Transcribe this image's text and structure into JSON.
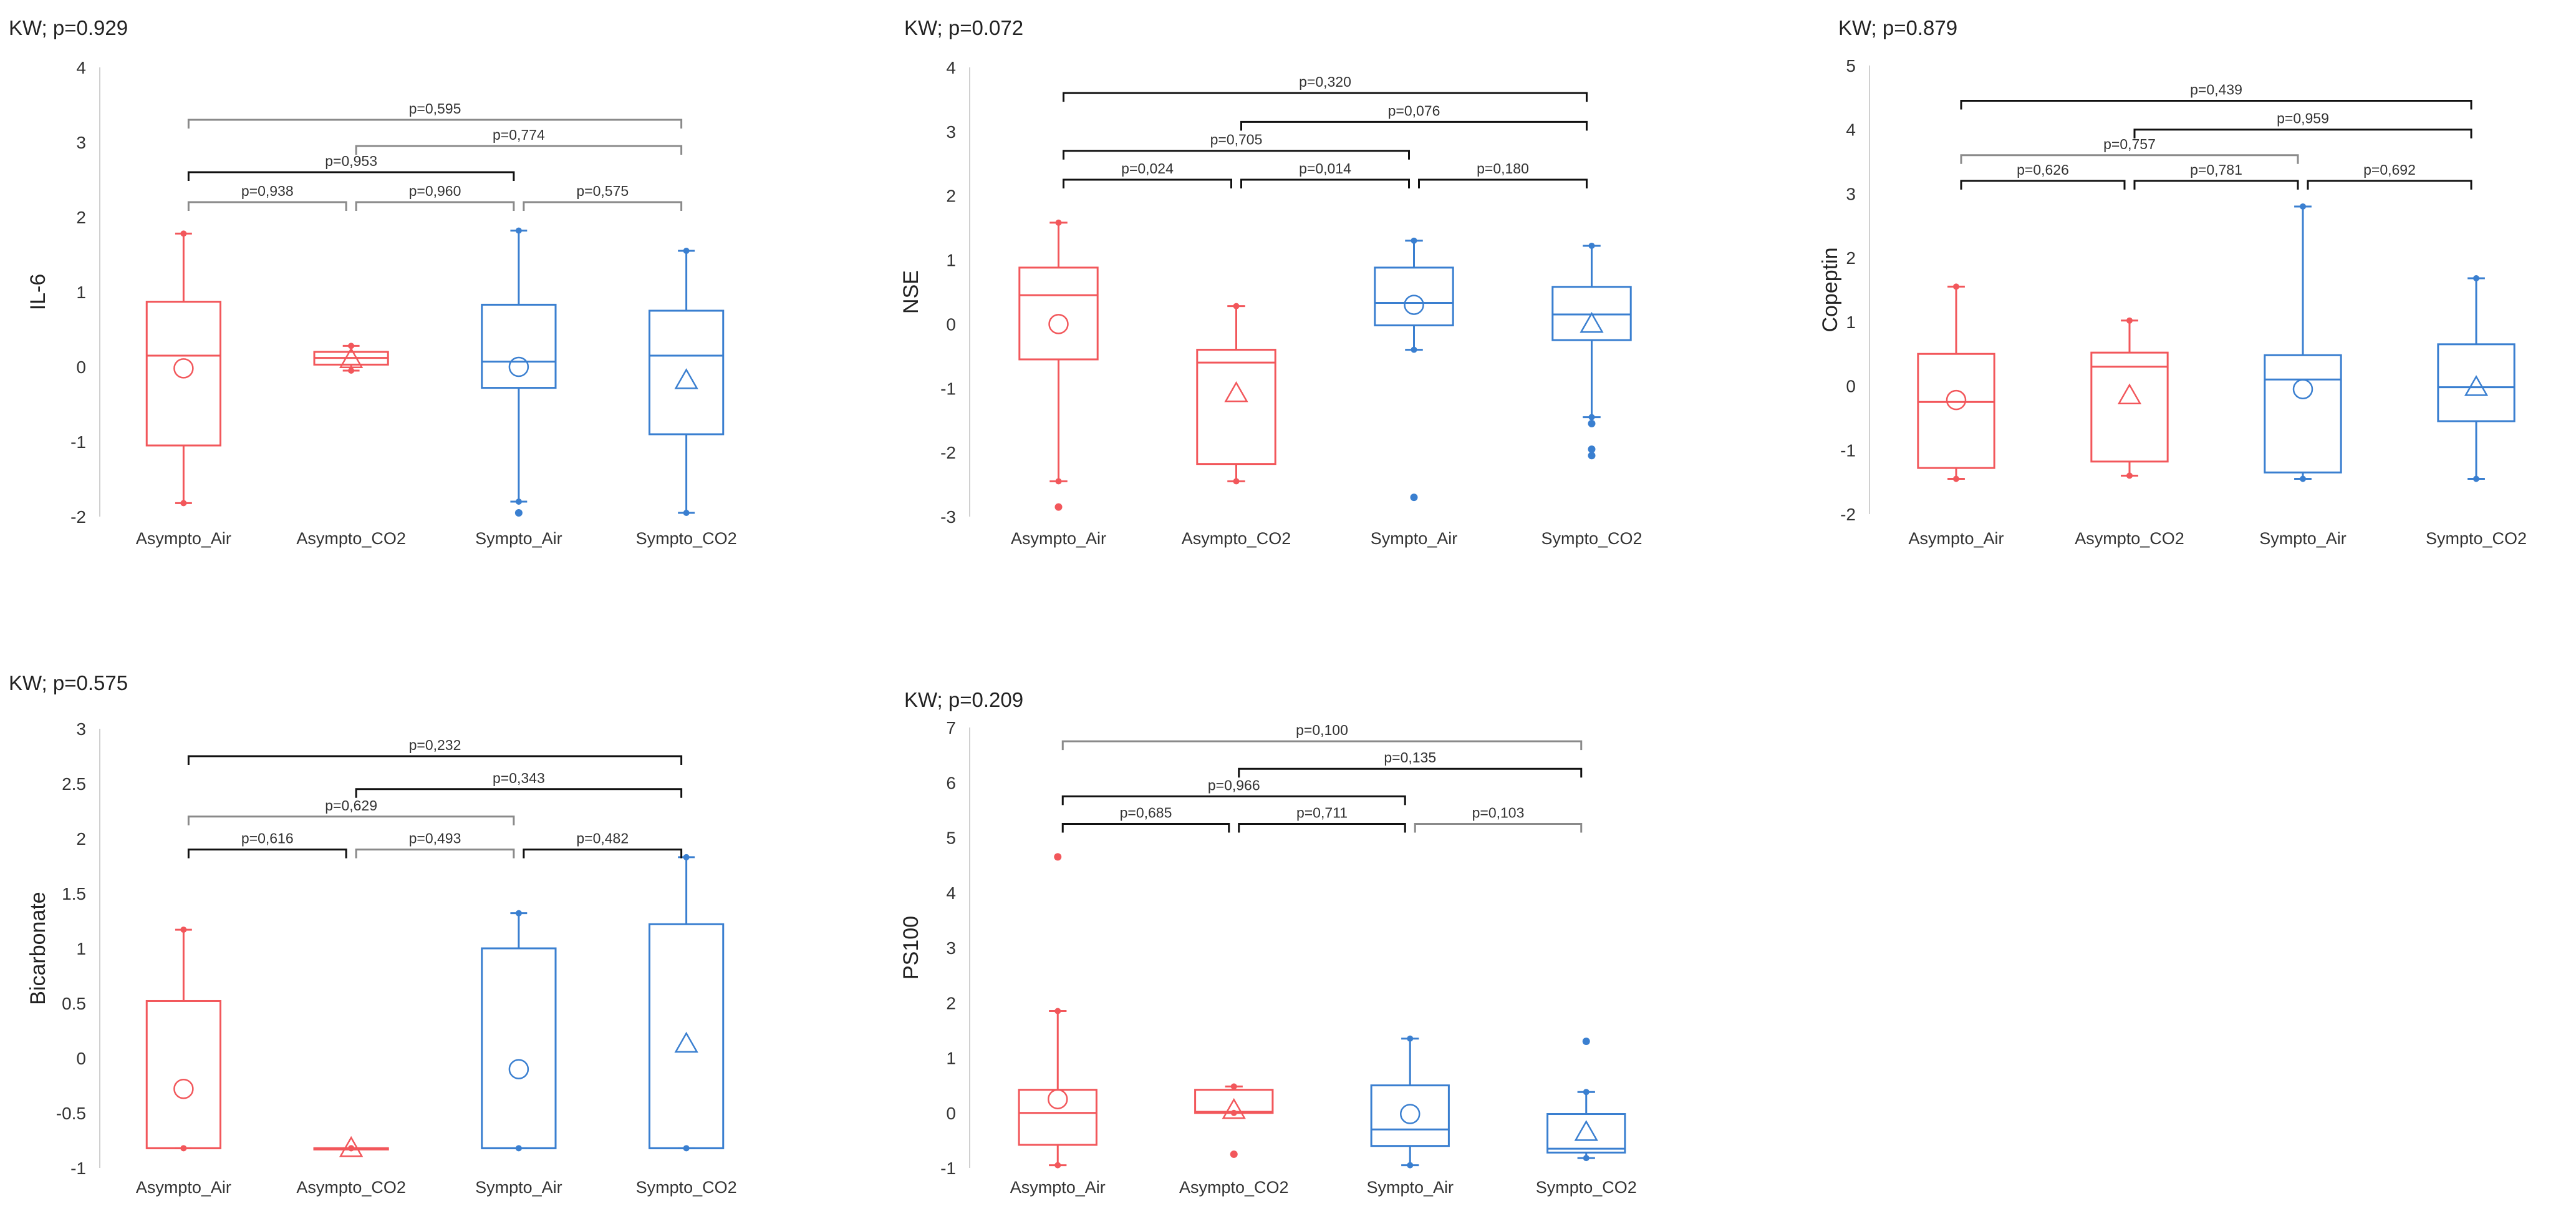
{
  "colors": {
    "asympto": "#f2575b",
    "sympto": "#3a7fd0",
    "bracket_dark": "#111111",
    "bracket_light": "#8a8a8a"
  },
  "chart_data": [
    {
      "type": "box",
      "title": "KW; p=0.929",
      "ylabel": "IL-6",
      "ylim": [
        -2,
        4
      ],
      "yticks": [
        "-2",
        "-1",
        "0",
        "1",
        "2",
        "3",
        "4"
      ],
      "categories": [
        "Asympto_Air",
        "Asympto_CO2",
        "Sympto_Air",
        "Sympto_CO2"
      ],
      "boxes": [
        {
          "q1": -1.05,
          "median": 0.15,
          "q3": 0.87,
          "wlo": -1.82,
          "whi": 1.78,
          "mean": -0.02,
          "mean_marker": "circle",
          "outliers": []
        },
        {
          "q1": 0.03,
          "median": 0.12,
          "q3": 0.2,
          "wlo": -0.05,
          "whi": 0.28,
          "mean": 0.1,
          "mean_marker": "triangle",
          "outliers": []
        },
        {
          "q1": -0.28,
          "median": 0.07,
          "q3": 0.83,
          "wlo": -1.8,
          "whi": 1.82,
          "mean": 0.0,
          "mean_marker": "circle",
          "outliers": [
            -1.95
          ]
        },
        {
          "q1": -0.9,
          "median": 0.15,
          "q3": 0.75,
          "wlo": -1.95,
          "whi": 1.55,
          "mean": -0.18,
          "mean_marker": "triangle",
          "outliers": []
        }
      ],
      "brackets": [
        {
          "label": "p=0,595",
          "from": 0,
          "to": 3,
          "level": 3.3,
          "style": "light"
        },
        {
          "label": "p=0,774",
          "from": 1,
          "to": 3,
          "level": 2.95,
          "style": "light"
        },
        {
          "label": "p=0,953",
          "from": 0,
          "to": 2,
          "level": 2.6,
          "style": "dark"
        },
        {
          "label": "p=0,938",
          "from": 0,
          "to": 1,
          "level": 2.2,
          "style": "light"
        },
        {
          "label": "p=0,960",
          "from": 1,
          "to": 2,
          "level": 2.2,
          "style": "light"
        },
        {
          "label": "p=0,575",
          "from": 2,
          "to": 3,
          "level": 2.2,
          "style": "light"
        }
      ]
    },
    {
      "type": "box",
      "title": "KW; p=0.072",
      "ylabel": "NSE",
      "ylim": [
        -3,
        4
      ],
      "yticks": [
        "-3",
        "-2",
        "-1",
        "0",
        "1",
        "2",
        "3",
        "4"
      ],
      "categories": [
        "Asympto_Air",
        "Asympto_CO2",
        "Sympto_Air",
        "Sympto_CO2"
      ],
      "boxes": [
        {
          "q1": -0.55,
          "median": 0.45,
          "q3": 0.88,
          "wlo": -2.45,
          "whi": 1.58,
          "mean": 0.0,
          "mean_marker": "circle",
          "outliers": [
            -2.85
          ]
        },
        {
          "q1": -2.18,
          "median": -0.6,
          "q3": -0.4,
          "wlo": -2.45,
          "whi": 0.28,
          "mean": -1.08,
          "mean_marker": "triangle",
          "outliers": []
        },
        {
          "q1": -0.02,
          "median": 0.33,
          "q3": 0.88,
          "wlo": -0.4,
          "whi": 1.3,
          "mean": 0.3,
          "mean_marker": "circle",
          "outliers": [
            -2.7
          ]
        },
        {
          "q1": -0.25,
          "median": 0.15,
          "q3": 0.58,
          "wlo": -1.45,
          "whi": 1.22,
          "mean": 0.0,
          "mean_marker": "triangle",
          "outliers": [
            -1.55,
            -1.95,
            -2.05
          ]
        }
      ],
      "brackets": [
        {
          "label": "p=0,320",
          "from": 0,
          "to": 3,
          "level": 3.6,
          "style": "dark"
        },
        {
          "label": "p=0,076",
          "from": 1,
          "to": 3,
          "level": 3.15,
          "style": "dark"
        },
        {
          "label": "p=0,705",
          "from": 0,
          "to": 2,
          "level": 2.7,
          "style": "dark"
        },
        {
          "label": "p=0,024",
          "from": 0,
          "to": 1,
          "level": 2.25,
          "style": "dark"
        },
        {
          "label": "p=0,014",
          "from": 1,
          "to": 2,
          "level": 2.25,
          "style": "dark"
        },
        {
          "label": "p=0,180",
          "from": 2,
          "to": 3,
          "level": 2.25,
          "style": "dark"
        }
      ]
    },
    {
      "type": "box",
      "title": "KW; p=0.879",
      "ylabel": "Copeptin",
      "ylim": [
        -2,
        5
      ],
      "yticks": [
        "-2",
        "-1",
        "0",
        "1",
        "2",
        "3",
        "4",
        "5"
      ],
      "categories": [
        "Asympto_Air",
        "Asympto_CO2",
        "Sympto_Air",
        "Sympto_CO2"
      ],
      "boxes": [
        {
          "q1": -1.28,
          "median": -0.25,
          "q3": 0.5,
          "wlo": -1.45,
          "whi": 1.55,
          "mean": -0.22,
          "mean_marker": "circle",
          "outliers": []
        },
        {
          "q1": -1.18,
          "median": 0.3,
          "q3": 0.52,
          "wlo": -1.4,
          "whi": 1.02,
          "mean": -0.15,
          "mean_marker": "triangle",
          "outliers": []
        },
        {
          "q1": -1.35,
          "median": 0.1,
          "q3": 0.48,
          "wlo": -1.45,
          "whi": 2.8,
          "mean": -0.05,
          "mean_marker": "circle",
          "outliers": []
        },
        {
          "q1": -0.55,
          "median": -0.02,
          "q3": 0.65,
          "wlo": -1.45,
          "whi": 1.68,
          "mean": -0.02,
          "mean_marker": "triangle",
          "outliers": []
        }
      ],
      "brackets": [
        {
          "label": "p=0,439",
          "from": 0,
          "to": 3,
          "level": 4.45,
          "style": "dark"
        },
        {
          "label": "p=0,959",
          "from": 1,
          "to": 3,
          "level": 4.0,
          "style": "dark"
        },
        {
          "label": "p=0,757",
          "from": 0,
          "to": 2,
          "level": 3.6,
          "style": "light"
        },
        {
          "label": "p=0,626",
          "from": 0,
          "to": 1,
          "level": 3.2,
          "style": "dark"
        },
        {
          "label": "p=0,781",
          "from": 1,
          "to": 2,
          "level": 3.2,
          "style": "dark"
        },
        {
          "label": "p=0,692",
          "from": 2,
          "to": 3,
          "level": 3.2,
          "style": "dark"
        }
      ]
    },
    {
      "type": "box",
      "title": "KW; p=0.575",
      "ylabel": "Bicarbonate",
      "ylim": [
        -1,
        3
      ],
      "yticks": [
        "-1",
        "-0.5",
        "0",
        "0.5",
        "1",
        "1.5",
        "2",
        "2.5",
        "3"
      ],
      "categories": [
        "Asympto_Air",
        "Asympto_CO2",
        "Sympto_Air",
        "Sympto_CO2"
      ],
      "boxes": [
        {
          "q1": -0.82,
          "median": -0.82,
          "q3": 0.52,
          "wlo": -0.82,
          "whi": 1.17,
          "mean": -0.28,
          "mean_marker": "circle",
          "outliers": []
        },
        {
          "q1": -0.82,
          "median": -0.82,
          "q3": -0.82,
          "wlo": -0.82,
          "whi": -0.82,
          "mean": -0.82,
          "mean_marker": "triangle",
          "outliers": []
        },
        {
          "q1": -0.82,
          "median": -0.82,
          "q3": 1.0,
          "wlo": -0.82,
          "whi": 1.32,
          "mean": -0.1,
          "mean_marker": "circle",
          "outliers": []
        },
        {
          "q1": -0.82,
          "median": -0.82,
          "q3": 1.22,
          "wlo": -0.82,
          "whi": 1.83,
          "mean": 0.13,
          "mean_marker": "triangle",
          "outliers": []
        }
      ],
      "brackets": [
        {
          "label": "p=0,232",
          "from": 0,
          "to": 3,
          "level": 2.75,
          "style": "dark"
        },
        {
          "label": "p=0,343",
          "from": 1,
          "to": 3,
          "level": 2.45,
          "style": "dark"
        },
        {
          "label": "p=0,629",
          "from": 0,
          "to": 2,
          "level": 2.2,
          "style": "light"
        },
        {
          "label": "p=0,616",
          "from": 0,
          "to": 1,
          "level": 1.9,
          "style": "dark"
        },
        {
          "label": "p=0,493",
          "from": 1,
          "to": 2,
          "level": 1.9,
          "style": "light"
        },
        {
          "label": "p=0,482",
          "from": 2,
          "to": 3,
          "level": 1.9,
          "style": "dark"
        }
      ]
    },
    {
      "type": "box",
      "title": "KW; p=0.209",
      "ylabel": "PS100",
      "ylim": [
        -1,
        7
      ],
      "yticks": [
        "-1",
        "0",
        "1",
        "2",
        "3",
        "4",
        "5",
        "6",
        "7"
      ],
      "categories": [
        "Asympto_Air",
        "Asympto_CO2",
        "Sympto_Air",
        "Sympto_CO2"
      ],
      "boxes": [
        {
          "q1": -0.58,
          "median": 0.0,
          "q3": 0.42,
          "wlo": -0.95,
          "whi": 1.85,
          "mean": 0.25,
          "mean_marker": "circle",
          "outliers": [
            4.65
          ]
        },
        {
          "q1": 0.0,
          "median": 0.02,
          "q3": 0.42,
          "wlo": 0.0,
          "whi": 0.48,
          "mean": 0.05,
          "mean_marker": "triangle",
          "outliers": [
            -0.75
          ]
        },
        {
          "q1": -0.6,
          "median": -0.3,
          "q3": 0.5,
          "wlo": -0.95,
          "whi": 1.35,
          "mean": -0.02,
          "mean_marker": "circle",
          "outliers": []
        },
        {
          "q1": -0.72,
          "median": -0.65,
          "q3": -0.02,
          "wlo": -0.82,
          "whi": 0.38,
          "mean": -0.35,
          "mean_marker": "triangle",
          "outliers": [
            1.3
          ]
        }
      ],
      "brackets": [
        {
          "label": "p=0,100",
          "from": 0,
          "to": 3,
          "level": 6.75,
          "style": "light"
        },
        {
          "label": "p=0,135",
          "from": 1,
          "to": 3,
          "level": 6.25,
          "style": "dark"
        },
        {
          "label": "p=0,966",
          "from": 0,
          "to": 2,
          "level": 5.75,
          "style": "dark"
        },
        {
          "label": "p=0,685",
          "from": 0,
          "to": 1,
          "level": 5.25,
          "style": "dark"
        },
        {
          "label": "p=0,711",
          "from": 1,
          "to": 2,
          "level": 5.25,
          "style": "dark"
        },
        {
          "label": "p=0,103",
          "from": 2,
          "to": 3,
          "level": 5.25,
          "style": "light"
        }
      ]
    }
  ]
}
